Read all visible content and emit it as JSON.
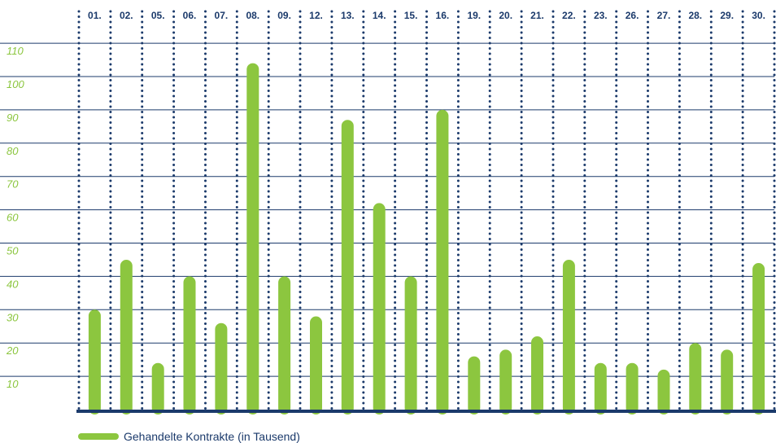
{
  "chart_data": {
    "type": "bar",
    "categories": [
      "01.",
      "02.",
      "05.",
      "06.",
      "07.",
      "08.",
      "09.",
      "12.",
      "13.",
      "14.",
      "15.",
      "16.",
      "19.",
      "20.",
      "21.",
      "22.",
      "23.",
      "26.",
      "27.",
      "28.",
      "29.",
      "30."
    ],
    "series": [
      {
        "name": "Gehandelte Kontrakte (in Tausend)",
        "values": [
          30,
          45,
          14,
          40,
          26,
          104,
          40,
          28,
          87,
          62,
          40,
          90,
          16,
          18,
          22,
          45,
          14,
          14,
          12,
          20,
          18,
          44
        ]
      }
    ],
    "yticks": [
      "10",
      "20",
      "30",
      "40",
      "50",
      "60",
      "70",
      "80",
      "90",
      "100",
      "110"
    ],
    "ylim": [
      0,
      110
    ],
    "title": "",
    "xlabel": "",
    "ylabel": "",
    "grid": true,
    "legend_position": "bottom-left",
    "colors": {
      "bar": "#8cc63f",
      "grid": "#1b3a6b",
      "tick_label_x": "#1b3a6b",
      "tick_label_y": "#8cc63f",
      "legend_text": "#1b3a6b"
    }
  }
}
